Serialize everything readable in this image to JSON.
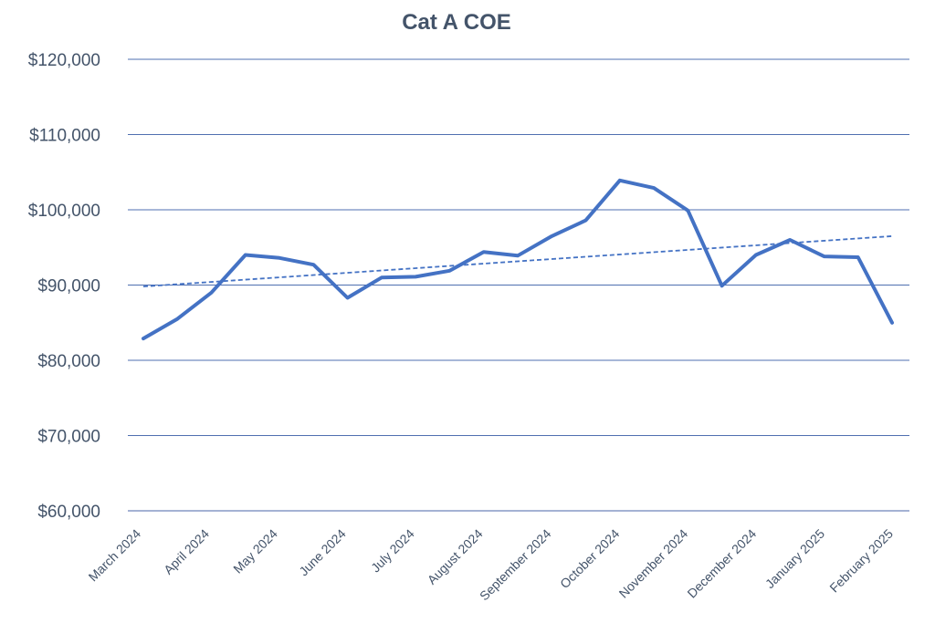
{
  "chart_data": {
    "type": "line",
    "title": "Cat A COE",
    "xlabel": "",
    "ylabel": "",
    "ylim": [
      60000,
      120000
    ],
    "y_ticks": [
      60000,
      70000,
      80000,
      90000,
      100000,
      110000,
      120000
    ],
    "y_tick_labels": [
      "$60,000",
      "$70,000",
      "$80,000",
      "$90,000",
      "$100,000",
      "$110,000",
      "$120,000"
    ],
    "x_tick_labels": [
      "March 2024",
      "April 2024",
      "May 2024",
      "June 2024",
      "July 2024",
      "August 2024",
      "September 2024",
      "October 2024",
      "November 2024",
      "December 2024",
      "January 2025",
      "February 2025"
    ],
    "grid": true,
    "legend": "none",
    "series": [
      {
        "values": [
          82900,
          85500,
          89000,
          94000,
          93600,
          92700,
          88300,
          91000,
          91100,
          91900,
          94400,
          93900,
          96500,
          98600,
          103900,
          102900,
          99900,
          89900,
          94000,
          96000,
          93800,
          93700,
          85000
        ],
        "color": "#4472c4",
        "style": "solid"
      },
      {
        "values": [
          89800,
          96500
        ],
        "color": "#4472c4",
        "style": "dashed",
        "trendline": "linear"
      }
    ]
  }
}
